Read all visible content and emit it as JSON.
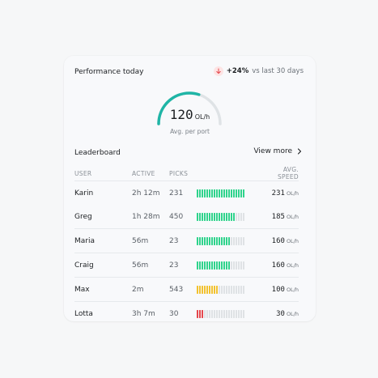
{
  "header": {
    "title": "Performance today",
    "change_value": "+24%",
    "change_compare": "vs last 30 days",
    "change_icon": "arrow-down-icon",
    "change_color": "#e5484d"
  },
  "gauge": {
    "value": "120",
    "unit": "OL/h",
    "caption": "Avg. per port",
    "fill_fraction": 0.6,
    "color": "#1fb5a6"
  },
  "leaderboard": {
    "title": "Leaderboard",
    "view_more": "View more",
    "columns": [
      "USER",
      "ACTIVE",
      "PICKS",
      "",
      "AVG. SPEED"
    ],
    "rows": [
      {
        "user": "Karin",
        "active": "2h 12m",
        "picks": "231",
        "speed": "231",
        "unit": "OL/h",
        "level": 1.0,
        "color": "#2fd38c"
      },
      {
        "user": "Greg",
        "active": "1h 28m",
        "picks": "450",
        "speed": "185",
        "unit": "OL/h",
        "level": 0.8,
        "color": "#2fd38c"
      },
      {
        "user": "Maria",
        "active": "56m",
        "picks": "23",
        "speed": "160",
        "unit": "OL/h",
        "level": 0.69,
        "color": "#2fd38c"
      },
      {
        "user": "Craig",
        "active": "56m",
        "picks": "23",
        "speed": "160",
        "unit": "OL/h",
        "level": 0.69,
        "color": "#2fd38c"
      },
      {
        "user": "Max",
        "active": "2m",
        "picks": "543",
        "speed": "100",
        "unit": "OL/h",
        "level": 0.43,
        "color": "#f2c230"
      },
      {
        "user": "Lotta",
        "active": "3h 7m",
        "picks": "30",
        "speed": "30",
        "unit": "OL/h",
        "level": 0.13,
        "color": "#e5484d"
      }
    ]
  }
}
